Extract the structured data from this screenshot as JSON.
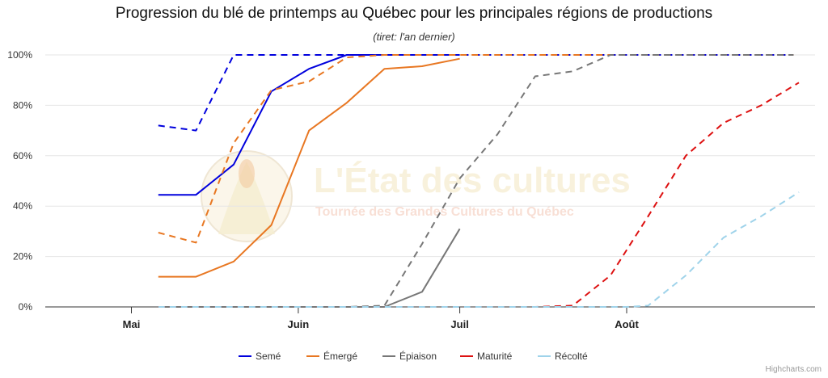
{
  "chart_data": {
    "type": "line",
    "title": "Progression du blé de printemps au Québec pour les principales régions de productions",
    "subtitle": "(tiret: l'an dernier)",
    "x_axis": {
      "type": "datetime",
      "range": [
        "2024-04-15",
        "2024-09-05"
      ],
      "ticks": [
        {
          "date": "2024-05-01",
          "label": "Mai"
        },
        {
          "date": "2024-06-01",
          "label": "Juin"
        },
        {
          "date": "2024-07-01",
          "label": "Juil"
        },
        {
          "date": "2024-08-01",
          "label": "Août"
        }
      ]
    },
    "y_axis": {
      "min": 0,
      "max": 100,
      "ticks": [
        0,
        20,
        40,
        60,
        80,
        100
      ],
      "format": "percent",
      "grid": true
    },
    "legend": {
      "position": "bottom-center"
    },
    "watermark": {
      "title": "L'État des cultures",
      "subtitle": "Tournée des Grandes Cultures du Québec"
    },
    "credits": "Highcharts.com",
    "series": [
      {
        "name": "Semé",
        "color": "#0000dd",
        "dashed": false,
        "points": [
          [
            "2024-05-06",
            44.5
          ],
          [
            "2024-05-13",
            44.5
          ],
          [
            "2024-05-20",
            56.5
          ],
          [
            "2024-05-27",
            85.5
          ],
          [
            "2024-06-03",
            94.5
          ],
          [
            "2024-06-10",
            100
          ],
          [
            "2024-06-17",
            100
          ],
          [
            "2024-06-24",
            100
          ],
          [
            "2024-07-01",
            100
          ]
        ]
      },
      {
        "name": "Semé (l'an dernier)",
        "color": "#0000dd",
        "dashed": true,
        "points": [
          [
            "2024-05-06",
            72
          ],
          [
            "2024-05-13",
            70
          ],
          [
            "2024-05-20",
            100
          ],
          [
            "2024-06-01",
            100
          ],
          [
            "2024-07-01",
            100
          ],
          [
            "2024-08-01",
            100
          ],
          [
            "2024-09-01",
            100
          ]
        ]
      },
      {
        "name": "Émergé",
        "color": "#e87722",
        "dashed": false,
        "points": [
          [
            "2024-05-06",
            12
          ],
          [
            "2024-05-13",
            12
          ],
          [
            "2024-05-20",
            18
          ],
          [
            "2024-05-27",
            32.5
          ],
          [
            "2024-06-03",
            70
          ],
          [
            "2024-06-10",
            81
          ],
          [
            "2024-06-17",
            94.5
          ],
          [
            "2024-06-24",
            95.5
          ],
          [
            "2024-07-01",
            98.5
          ]
        ]
      },
      {
        "name": "Émergé (l'an dernier)",
        "color": "#e87722",
        "dashed": true,
        "points": [
          [
            "2024-05-06",
            29.5
          ],
          [
            "2024-05-13",
            25.5
          ],
          [
            "2024-05-20",
            65
          ],
          [
            "2024-05-27",
            86
          ],
          [
            "2024-06-03",
            89.5
          ],
          [
            "2024-06-10",
            99
          ],
          [
            "2024-06-17",
            100
          ],
          [
            "2024-07-01",
            100
          ],
          [
            "2024-08-01",
            100
          ],
          [
            "2024-09-01",
            100
          ]
        ]
      },
      {
        "name": "Épiaison",
        "color": "#777777",
        "dashed": false,
        "points": [
          [
            "2024-05-06",
            0
          ],
          [
            "2024-06-17",
            0
          ],
          [
            "2024-06-24",
            6
          ],
          [
            "2024-07-01",
            31
          ]
        ]
      },
      {
        "name": "Épiaison (l'an dernier)",
        "color": "#777777",
        "dashed": true,
        "points": [
          [
            "2024-05-06",
            0
          ],
          [
            "2024-06-10",
            0
          ],
          [
            "2024-06-17",
            0.5
          ],
          [
            "2024-06-24",
            25
          ],
          [
            "2024-07-01",
            51
          ],
          [
            "2024-07-08",
            68.5
          ],
          [
            "2024-07-15",
            91.5
          ],
          [
            "2024-07-22",
            93.5
          ],
          [
            "2024-07-29",
            100
          ],
          [
            "2024-08-05",
            100
          ],
          [
            "2024-09-01",
            100
          ]
        ]
      },
      {
        "name": "Maturité",
        "color": "#dd1111",
        "dashed": true,
        "points": [
          [
            "2024-05-06",
            0
          ],
          [
            "2024-07-15",
            0
          ],
          [
            "2024-07-22",
            0.5
          ],
          [
            "2024-07-29",
            12.5
          ],
          [
            "2024-08-05",
            36
          ],
          [
            "2024-08-12",
            60
          ],
          [
            "2024-08-19",
            73
          ],
          [
            "2024-08-26",
            80
          ],
          [
            "2024-09-02",
            89
          ]
        ]
      },
      {
        "name": "Récolté",
        "color": "#9fd3ea",
        "dashed": true,
        "points": [
          [
            "2024-05-06",
            0
          ],
          [
            "2024-08-01",
            0
          ],
          [
            "2024-08-05",
            0.5
          ],
          [
            "2024-08-12",
            12.5
          ],
          [
            "2024-08-19",
            27.5
          ],
          [
            "2024-08-26",
            36
          ],
          [
            "2024-09-02",
            45.5
          ]
        ]
      }
    ],
    "legend_items": [
      {
        "name": "Semé",
        "color": "#0000dd"
      },
      {
        "name": "Émergé",
        "color": "#e87722"
      },
      {
        "name": "Épiaison",
        "color": "#777777"
      },
      {
        "name": "Maturité",
        "color": "#dd1111"
      },
      {
        "name": "Récolté",
        "color": "#9fd3ea"
      }
    ]
  }
}
